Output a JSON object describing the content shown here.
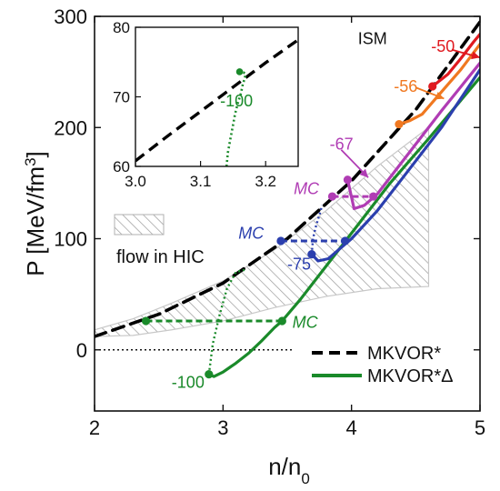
{
  "chart_data": [
    {
      "type": "line",
      "xlabel": "n/n",
      "xlabel_sub": "0",
      "ylabel": "P [MeV/fm",
      "ylabel_sup": "3",
      "ylabel_tail": "]",
      "xlim": [
        2,
        5
      ],
      "ylim": [
        -55,
        300
      ],
      "x_ticks": [
        2,
        3,
        4,
        5
      ],
      "x_tick_labels": [
        "2",
        "3",
        "4",
        "5"
      ],
      "y_ticks": [
        0,
        100,
        200,
        300
      ],
      "y_tick_labels": [
        "0",
        "100",
        "200",
        "300"
      ],
      "zero_line": true,
      "flow_region": {
        "upper": [
          [
            2.0,
            18
          ],
          [
            2.3,
            28
          ],
          [
            2.6,
            42
          ],
          [
            3.0,
            62
          ],
          [
            3.4,
            90
          ],
          [
            3.8,
            125
          ],
          [
            4.2,
            165
          ],
          [
            4.6,
            200
          ]
        ],
        "lower": [
          [
            2.0,
            12
          ],
          [
            2.3,
            13
          ],
          [
            2.6,
            18
          ],
          [
            3.0,
            26
          ],
          [
            3.4,
            38
          ],
          [
            3.8,
            48
          ],
          [
            4.2,
            55
          ],
          [
            4.6,
            57
          ]
        ],
        "hatch_right": [
          [
            4.6,
            170
          ],
          [
            4.6,
            57
          ]
        ]
      },
      "series": [
        {
          "name": "MKVOR*",
          "color": "#000000",
          "dash": "dash",
          "x": [
            2.0,
            2.5,
            3.0,
            3.5,
            4.0,
            4.5,
            5.0
          ],
          "y": [
            12,
            32,
            60,
            100,
            152,
            216,
            295
          ]
        },
        {
          "name": "MKVOR*Δ",
          "color": "#1a8a2a",
          "dash": "solid",
          "x": [
            2.89,
            2.93,
            3.0,
            3.1,
            3.2,
            3.3,
            3.4,
            3.46,
            3.6,
            3.8,
            4.0,
            4.3,
            4.6,
            5.0
          ],
          "y": [
            -22,
            -24,
            -20,
            -12,
            -3,
            8,
            20,
            26,
            45,
            75,
            105,
            150,
            190,
            245
          ]
        },
        {
          "name": "",
          "color": "#2b3fae",
          "dash": "solid",
          "x": [
            3.69,
            3.74,
            3.82,
            3.9,
            4.0,
            4.2,
            4.4,
            4.7,
            5.0
          ],
          "y": [
            86,
            80,
            82,
            90,
            100,
            125,
            155,
            200,
            252
          ]
        },
        {
          "name": "",
          "color": "#b03cb4",
          "dash": "solid",
          "x": [
            3.97,
            4.02,
            4.1,
            4.2,
            4.4,
            4.7,
            5.0
          ],
          "y": [
            153,
            127,
            130,
            140,
            170,
            215,
            258
          ]
        },
        {
          "name": "",
          "color": "#f07820",
          "dash": "solid",
          "x": [
            4.37,
            4.45,
            4.55,
            4.7,
            4.85,
            5.0
          ],
          "y": [
            203,
            206,
            212,
            232,
            252,
            275
          ]
        },
        {
          "name": "",
          "color": "#e01a20",
          "dash": "solid",
          "x": [
            4.63,
            4.75,
            4.85,
            4.95,
            5.0
          ],
          "y": [
            237,
            248,
            262,
            277,
            284
          ]
        }
      ],
      "maxwell_lines": [
        {
          "color": "#1a8a2a",
          "x": [
            2.4,
            3.46
          ],
          "y": [
            26,
            26
          ]
        },
        {
          "color": "#2b3fae",
          "x": [
            3.45,
            3.95
          ],
          "y": [
            98,
            98
          ]
        },
        {
          "color": "#b03cb4",
          "x": [
            3.85,
            4.17
          ],
          "y": [
            138,
            138
          ]
        }
      ],
      "spinodal_lines": [
        {
          "color": "#1a8a2a",
          "x": [
            2.89,
            2.92,
            2.97,
            3.03,
            3.1,
            3.17
          ],
          "y": [
            -22,
            5,
            30,
            55,
            70,
            72
          ]
        },
        {
          "color": "#2b3fae",
          "x": [
            3.69,
            3.7,
            3.72,
            3.76,
            3.77
          ],
          "y": [
            86,
            100,
            110,
            125,
            130
          ]
        },
        {
          "color": "#b03cb4",
          "x": [
            3.97
          ],
          "y": [
            153
          ]
        }
      ],
      "markers": [
        {
          "color": "#1a8a2a",
          "x": 2.89,
          "y": -22
        },
        {
          "color": "#1a8a2a",
          "x": 2.4,
          "y": 26
        },
        {
          "color": "#1a8a2a",
          "x": 3.46,
          "y": 26
        },
        {
          "color": "#2b3fae",
          "x": 3.69,
          "y": 86
        },
        {
          "color": "#2b3fae",
          "x": 3.45,
          "y": 98
        },
        {
          "color": "#2b3fae",
          "x": 3.95,
          "y": 98
        },
        {
          "color": "#b03cb4",
          "x": 3.97,
          "y": 153
        },
        {
          "color": "#b03cb4",
          "x": 3.85,
          "y": 138
        },
        {
          "color": "#b03cb4",
          "x": 4.17,
          "y": 138
        },
        {
          "color": "#f07820",
          "x": 4.37,
          "y": 203
        },
        {
          "color": "#e01a20",
          "x": 4.63,
          "y": 237
        }
      ],
      "annotations": [
        {
          "text": "ISM",
          "color": "#111111",
          "x": 4.05,
          "y": 275
        },
        {
          "text": "-50",
          "color": "#e01a20",
          "x": 4.62,
          "y": 268
        },
        {
          "text": "-56",
          "color": "#f07820",
          "x": 4.33,
          "y": 232
        },
        {
          "text": "-67",
          "color": "#b03cb4",
          "x": 3.83,
          "y": 180
        },
        {
          "text": "-75",
          "color": "#2b3fae",
          "x": 3.5,
          "y": 72
        },
        {
          "text": "-100",
          "color": "#1a8a2a",
          "x": 2.6,
          "y": -34
        },
        {
          "text": "MC",
          "color": "#b03cb4",
          "x": 3.55,
          "y": 140,
          "italic": true
        },
        {
          "text": "MC",
          "color": "#2b3fae",
          "x": 3.12,
          "y": 100,
          "italic": true
        },
        {
          "text": "MC",
          "color": "#1a8a2a",
          "x": 3.54,
          "y": 20,
          "italic": true
        }
      ],
      "legend": {
        "position": "lower right",
        "flow_label": "flow in HIC",
        "entries": [
          {
            "label": "MKVOR*",
            "color": "#000000",
            "dash": "dash"
          },
          {
            "label": "MKVOR*Δ",
            "color": "#1a8a2a",
            "dash": "solid"
          }
        ]
      }
    },
    {
      "type": "line",
      "role": "inset",
      "xlim": [
        3.0,
        3.25
      ],
      "ylim": [
        60,
        80
      ],
      "x_ticks": [
        3.0,
        3.1,
        3.2
      ],
      "x_tick_labels": [
        "3.0",
        "3.1",
        "3.2"
      ],
      "y_ticks": [
        60,
        70,
        80
      ],
      "y_tick_labels": [
        "60",
        "70",
        "80"
      ],
      "series": [
        {
          "name": "",
          "color": "#000000",
          "dash": "dash",
          "x": [
            3.0,
            3.05,
            3.1,
            3.15,
            3.2,
            3.25
          ],
          "y": [
            60.8,
            64.4,
            67.9,
            71.4,
            74.9,
            78.2
          ]
        },
        {
          "name": "",
          "color": "#1a8a2a",
          "dash": "dot",
          "x": [
            3.14,
            3.142,
            3.146,
            3.15,
            3.153,
            3.157,
            3.162,
            3.165,
            3.168,
            3.169,
            3.166,
            3.16
          ],
          "y": [
            60,
            62,
            64,
            66,
            67.5,
            69,
            70.5,
            71.8,
            72.7,
            73.3,
            73.5,
            73.6
          ]
        }
      ],
      "markers": [
        {
          "color": "#1a8a2a",
          "x": 3.16,
          "y": 73.6
        }
      ],
      "annotations": [
        {
          "text": "-100",
          "color": "#1a8a2a",
          "x": 3.13,
          "y": 68.6
        }
      ]
    }
  ]
}
